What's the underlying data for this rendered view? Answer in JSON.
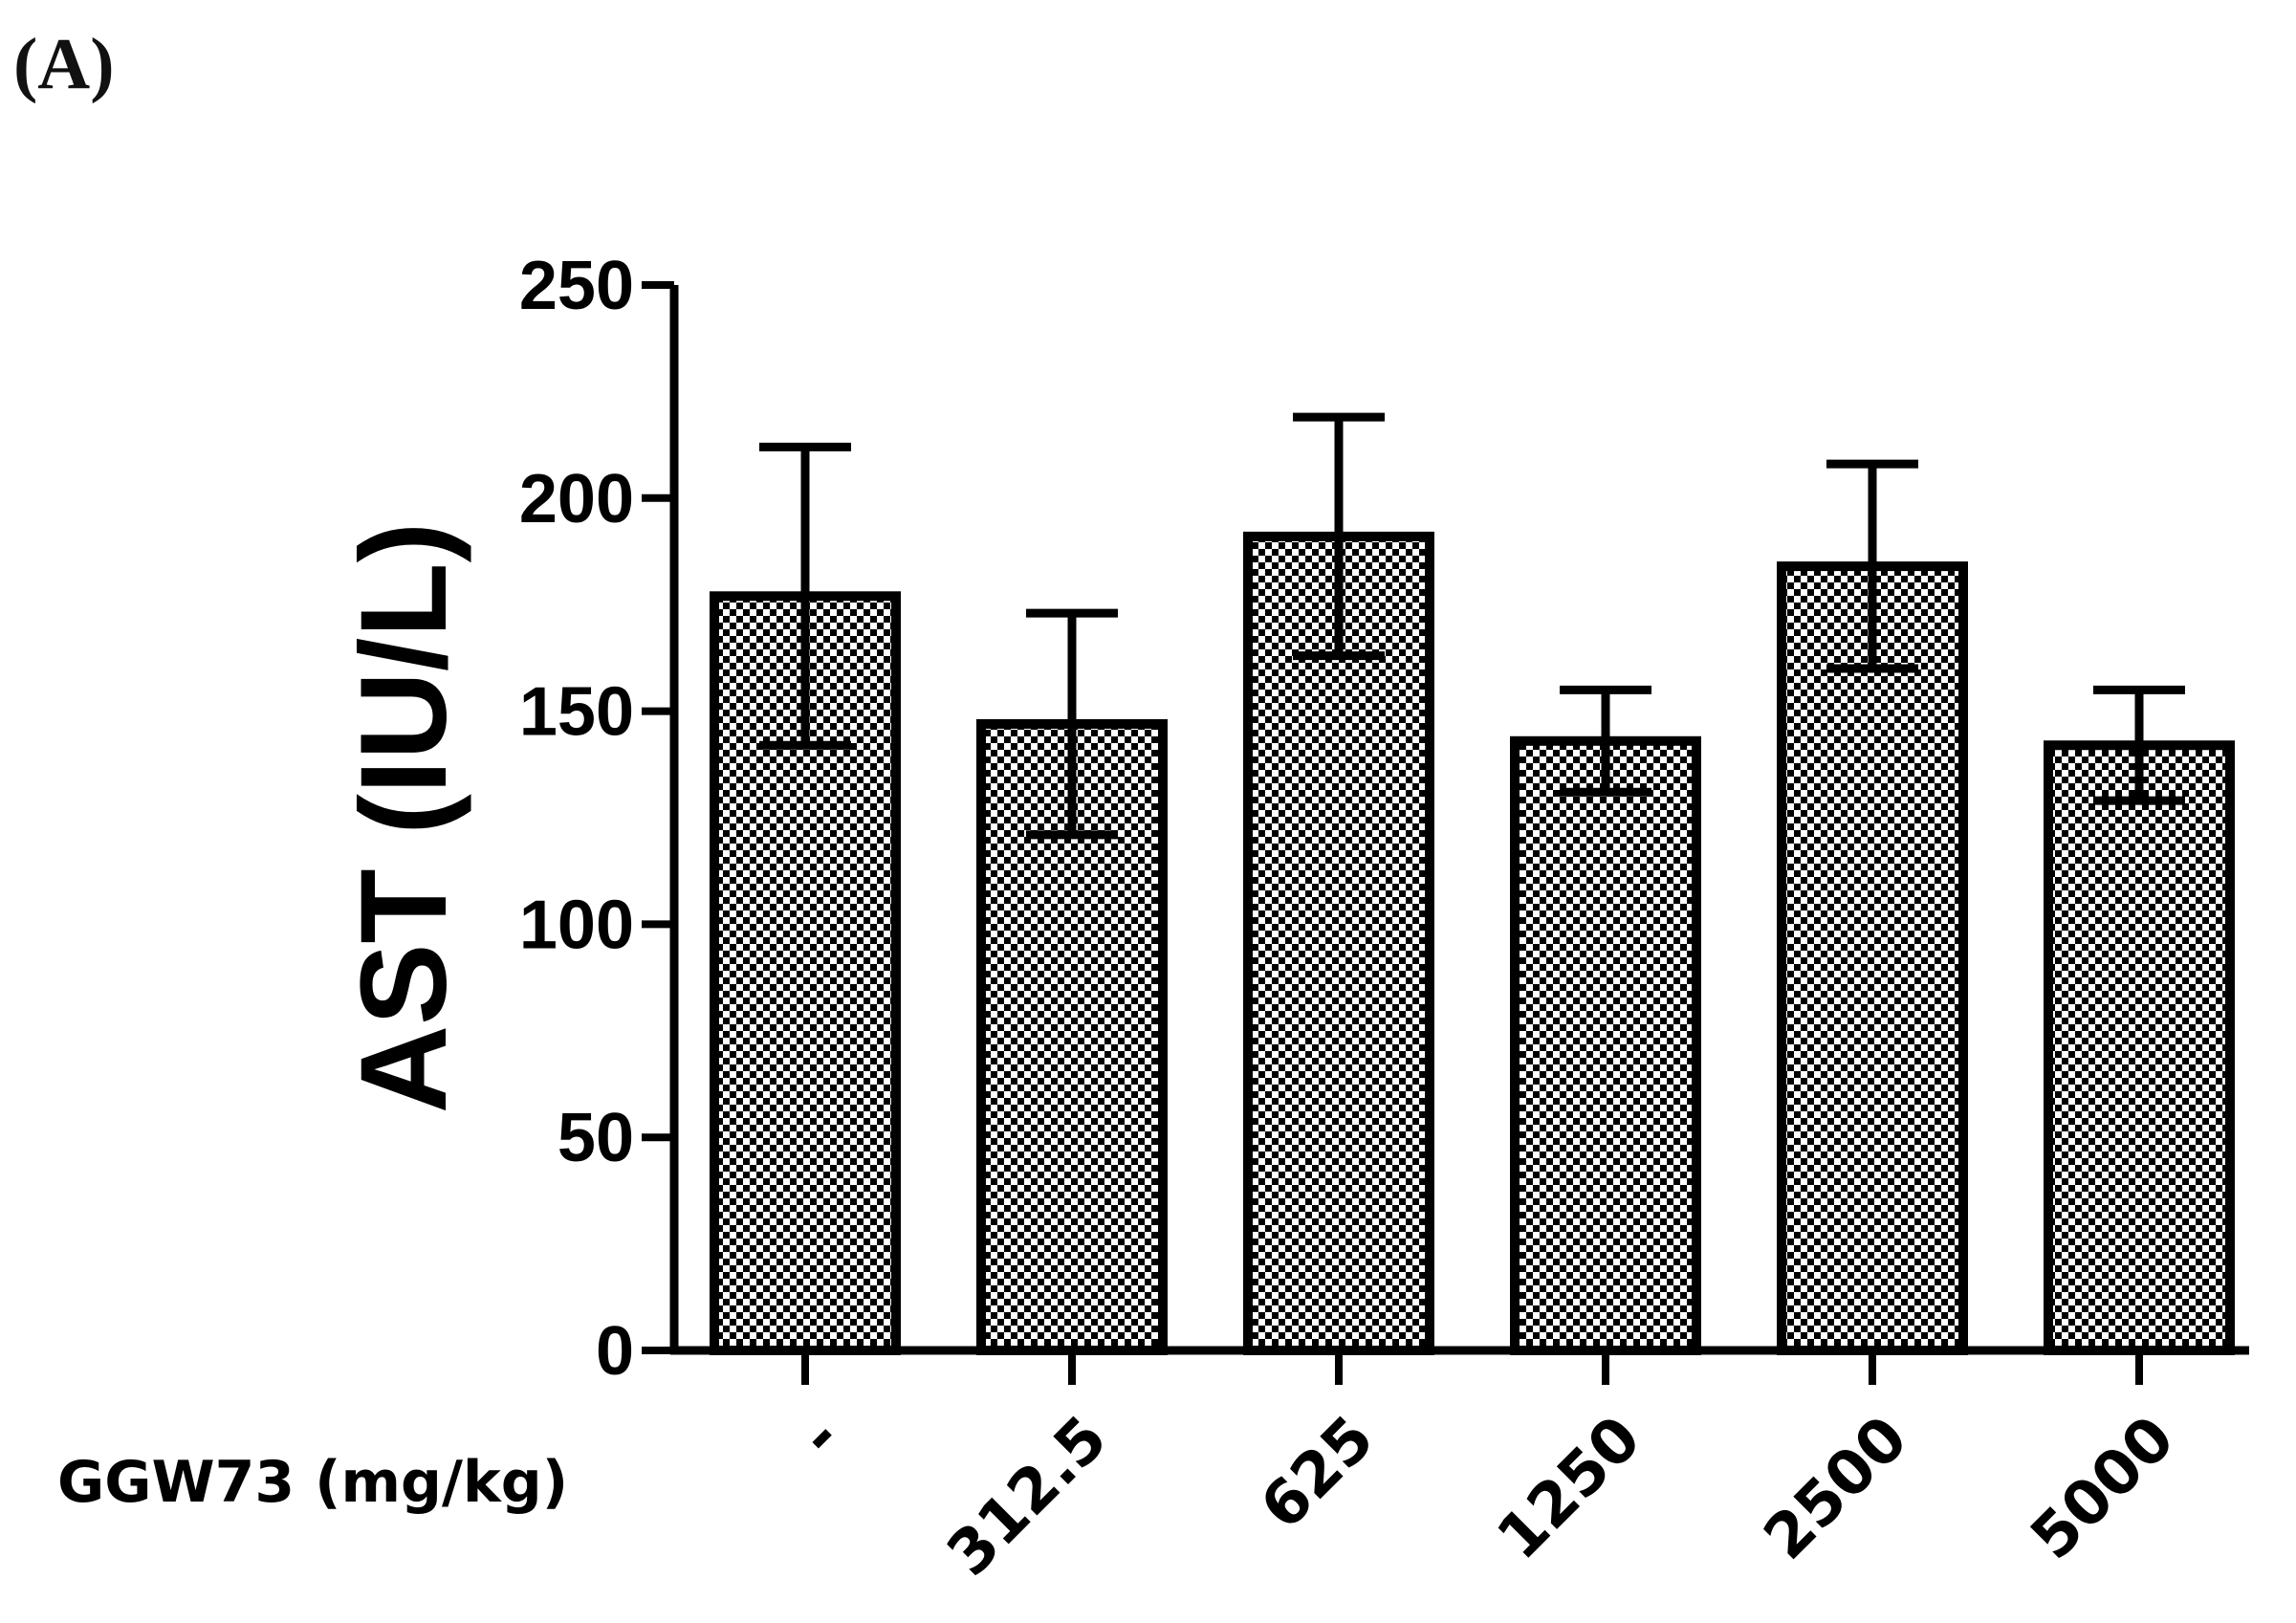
{
  "panel_label": "(A)",
  "chart_data": {
    "type": "bar",
    "title": "",
    "xlabel": "GGW73  (mg/kg)",
    "ylabel": "AST (IU/L)",
    "ylim": [
      0,
      250
    ],
    "yticks": [
      0,
      50,
      100,
      150,
      200,
      250
    ],
    "ytick_labels": [
      "0",
      "50",
      "100",
      "150",
      "200",
      "250"
    ],
    "categories": [
      "-",
      "312.5",
      "625",
      "1250",
      "2500",
      "5000"
    ],
    "values": [
      177,
      147,
      191,
      143,
      184,
      142
    ],
    "errors": [
      35,
      26,
      28,
      12,
      24,
      13
    ],
    "bar_pattern": "checkered",
    "colors": {
      "bar_fill_a": "#ffffff",
      "bar_fill_b": "#000000",
      "stroke": "#000000"
    }
  }
}
